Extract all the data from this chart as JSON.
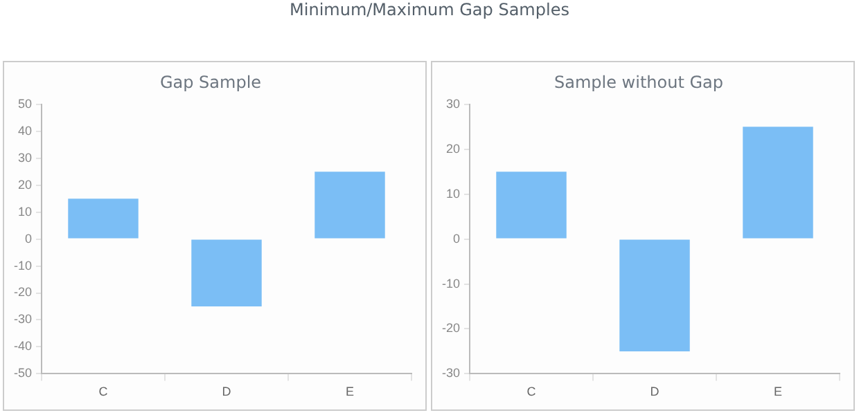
{
  "chart_data": [
    {
      "type": "bar",
      "title": "Minimum/Maximum Gap Samples",
      "subtitle": "Gap Sample",
      "categories": [
        "C",
        "D",
        "E"
      ],
      "values": [
        15,
        -25,
        25
      ],
      "color": "#7bbef5",
      "ylim": [
        -50,
        50
      ],
      "yticks": [
        -50,
        -40,
        -30,
        -20,
        -10,
        0,
        10,
        20,
        30,
        40,
        50
      ],
      "grid": false,
      "legend": false
    },
    {
      "type": "bar",
      "subtitle": "Sample without Gap",
      "categories": [
        "C",
        "D",
        "E"
      ],
      "values": [
        15,
        -25,
        25
      ],
      "color": "#7bbef5",
      "ylim": [
        -30,
        30
      ],
      "yticks": [
        -30,
        -20,
        -10,
        0,
        10,
        20,
        30
      ],
      "grid": false,
      "legend": false
    }
  ]
}
